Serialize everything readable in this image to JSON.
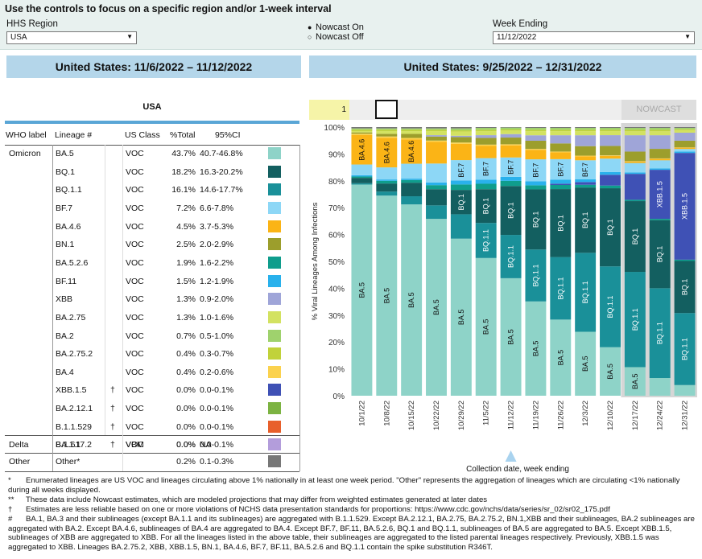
{
  "controls": {
    "instruction": "Use the controls to focus on a specific region and/or 1-week interval",
    "region_label": "HHS Region",
    "region_value": "USA",
    "nowcast_on": "Nowcast On",
    "nowcast_off": "Nowcast Off",
    "week_label": "Week Ending",
    "week_value": "11/12/2022"
  },
  "left_banner": "United States: 11/6/2022 – 11/12/2022",
  "right_banner": "United States: 9/25/2022 – 12/31/2022",
  "table": {
    "region": "USA",
    "headers": [
      "WHO label",
      "Lineage #",
      "US Class",
      "%Total",
      "95%CI"
    ],
    "rows": [
      {
        "who": "Omicron",
        "lineage": "BA.5",
        "dagger": "",
        "cls": "VOC",
        "pct": "43.7%",
        "ci": "40.7-46.8%",
        "color": "#8ed3c8"
      },
      {
        "who": "",
        "lineage": "BQ.1",
        "dagger": "",
        "cls": "VOC",
        "pct": "18.2%",
        "ci": "16.3-20.2%",
        "color": "#135f60"
      },
      {
        "who": "",
        "lineage": "BQ.1.1",
        "dagger": "",
        "cls": "VOC",
        "pct": "16.1%",
        "ci": "14.6-17.7%",
        "color": "#1a9099"
      },
      {
        "who": "",
        "lineage": "BF.7",
        "dagger": "",
        "cls": "VOC",
        "pct": "7.2%",
        "ci": "6.6-7.8%",
        "color": "#8dd7f6"
      },
      {
        "who": "",
        "lineage": "BA.4.6",
        "dagger": "",
        "cls": "VOC",
        "pct": "4.5%",
        "ci": "3.7-5.3%",
        "color": "#fbb416"
      },
      {
        "who": "",
        "lineage": "BN.1",
        "dagger": "",
        "cls": "VOC",
        "pct": "2.5%",
        "ci": "2.0-2.9%",
        "color": "#9c9e2c"
      },
      {
        "who": "",
        "lineage": "BA.5.2.6",
        "dagger": "",
        "cls": "VOC",
        "pct": "1.9%",
        "ci": "1.6-2.2%",
        "color": "#0f9d8c"
      },
      {
        "who": "",
        "lineage": "BF.11",
        "dagger": "",
        "cls": "VOC",
        "pct": "1.5%",
        "ci": "1.2-1.9%",
        "color": "#29b1ec"
      },
      {
        "who": "",
        "lineage": "XBB",
        "dagger": "",
        "cls": "VOC",
        "pct": "1.3%",
        "ci": "0.9-2.0%",
        "color": "#9fa5d8"
      },
      {
        "who": "",
        "lineage": "BA.2.75",
        "dagger": "",
        "cls": "VOC",
        "pct": "1.3%",
        "ci": "1.0-1.6%",
        "color": "#d3e261"
      },
      {
        "who": "",
        "lineage": "BA.2",
        "dagger": "",
        "cls": "VOC",
        "pct": "0.7%",
        "ci": "0.5-1.0%",
        "color": "#9fd26d"
      },
      {
        "who": "",
        "lineage": "BA.2.75.2",
        "dagger": "",
        "cls": "VOC",
        "pct": "0.4%",
        "ci": "0.3-0.7%",
        "color": "#c1d23a"
      },
      {
        "who": "",
        "lineage": "BA.4",
        "dagger": "",
        "cls": "VOC",
        "pct": "0.4%",
        "ci": "0.2-0.6%",
        "color": "#fbd24e"
      },
      {
        "who": "",
        "lineage": "XBB.1.5",
        "dagger": "†",
        "cls": "VOC",
        "pct": "0.0%",
        "ci": "0.0-0.1%",
        "color": "#3f51b5"
      },
      {
        "who": "",
        "lineage": "BA.2.12.1",
        "dagger": "†",
        "cls": "VOC",
        "pct": "0.0%",
        "ci": "0.0-0.1%",
        "color": "#7cb342"
      },
      {
        "who": "",
        "lineage": "B.1.1.529",
        "dagger": "†",
        "cls": "VOC",
        "pct": "0.0%",
        "ci": "0.0-0.1%",
        "color": "#e8602c"
      },
      {
        "who": "",
        "lineage": "BA.1.1",
        "dagger": "†",
        "cls": "VOC",
        "pct": "0.0%",
        "ci": "0.0-0.1%",
        "color": "#fb8a5a"
      },
      {
        "who": "Delta",
        "lineage": "B.1.617.2",
        "dagger": "",
        "cls": "VBM",
        "pct": "0.0%",
        "ci": "NA",
        "color": "#b39ddb"
      },
      {
        "who": "Other",
        "lineage": "Other*",
        "dagger": "",
        "cls": "",
        "pct": "0.2%",
        "ci": "0.1-0.3%",
        "color": "#777777"
      }
    ]
  },
  "slider": {
    "value": "1",
    "nowcast_label": "NOWCAST"
  },
  "chart_data": {
    "type": "bar",
    "stacked": true,
    "ylabel": "% Viral Lineages Among Infections",
    "xlabel": "Collection date, week ending",
    "ylim": [
      0,
      100
    ],
    "yticks": [
      "0%",
      "10%",
      "20%",
      "30%",
      "40%",
      "50%",
      "60%",
      "70%",
      "80%",
      "90%",
      "100%"
    ],
    "categories": [
      "10/1/22",
      "10/8/22",
      "10/15/22",
      "10/22/22",
      "10/29/22",
      "11/5/22",
      "11/12/22",
      "11/19/22",
      "11/26/22",
      "12/3/22",
      "12/10/22",
      "12/17/22",
      "12/24/22",
      "12/31/22"
    ],
    "selected_category": "11/12/22",
    "nowcast_start": "12/17/22",
    "series": [
      {
        "name": "BA.5",
        "color": "#8ed3c8",
        "values": [
          79,
          74.5,
          70.5,
          65.5,
          58,
          51,
          43.7,
          34.5,
          28,
          23.5,
          18,
          10.5,
          6.5,
          4
        ]
      },
      {
        "name": "BQ.1.1",
        "color": "#1a9099",
        "values": [
          0.5,
          1.5,
          3,
          5,
          9,
          13,
          16.1,
          19,
          23,
          29,
          30,
          35,
          33,
          27
        ]
      },
      {
        "name": "BQ.1",
        "color": "#135f60",
        "values": [
          2,
          3,
          5,
          6,
          9,
          12.5,
          18.2,
          22,
          25,
          24,
          29,
          26,
          25,
          19.5
        ]
      },
      {
        "name": "BA.5.2.6",
        "color": "#0f9d8c",
        "values": [
          0.5,
          1,
          1,
          1.5,
          2,
          2,
          1.9,
          1.5,
          1.5,
          1,
          1,
          0.5,
          0.5,
          0.5
        ]
      },
      {
        "name": "XBB.1.5",
        "color": "#3f51b5",
        "values": [
          0,
          0,
          0,
          0,
          0,
          0,
          0,
          0,
          0.5,
          1,
          4,
          9.5,
          18,
          40
        ]
      },
      {
        "name": "BF.11",
        "color": "#29b1ec",
        "values": [
          0.5,
          0.5,
          0.5,
          1,
          1.5,
          1.5,
          1.5,
          1.5,
          1.5,
          1,
          1,
          0.5,
          0.5,
          0.5
        ]
      },
      {
        "name": "BF.7",
        "color": "#8dd7f6",
        "values": [
          4,
          4.5,
          5.5,
          7,
          7.5,
          8,
          7.2,
          8,
          7.5,
          7,
          5,
          3.5,
          3,
          1
        ]
      },
      {
        "name": "BA.4.6",
        "color": "#fbb416",
        "values": [
          11,
          11,
          9,
          8,
          6,
          4.5,
          4.5,
          3.5,
          2.5,
          1.5,
          1,
          0.5,
          0.5,
          0.5
        ]
      },
      {
        "name": "BA.4",
        "color": "#fbd24e",
        "values": [
          0.5,
          0.5,
          0.5,
          0.5,
          0.5,
          0.5,
          0.4,
          0.3,
          0.3,
          0.2,
          0.2,
          0.2,
          0.2,
          0.1
        ]
      },
      {
        "name": "BN.1",
        "color": "#9c9e2c",
        "values": [
          0.5,
          1,
          1.5,
          1.5,
          2,
          2.5,
          2.5,
          3,
          3,
          3.5,
          3.5,
          3.5,
          3.5,
          2.5
        ]
      },
      {
        "name": "XBB",
        "color": "#9fa5d8",
        "values": [
          0,
          0,
          0,
          0.5,
          0.5,
          1,
          1.3,
          2,
          3,
          4,
          4,
          6,
          5,
          3
        ]
      },
      {
        "name": "BA.2.75",
        "color": "#d3e261",
        "values": [
          0.5,
          1,
          1,
          1.5,
          1.5,
          1.5,
          1.3,
          1.5,
          1.5,
          1.5,
          1.5,
          1.5,
          1.5,
          1
        ]
      },
      {
        "name": "BA.2.75.2",
        "color": "#c1d23a",
        "values": [
          0.5,
          0.5,
          0.5,
          0.5,
          0.5,
          0.5,
          0.4,
          0.5,
          0.5,
          0.5,
          0.5,
          0.5,
          0.5,
          0.3
        ]
      },
      {
        "name": "BA.2",
        "color": "#9fd26d",
        "values": [
          0.5,
          0.5,
          0.5,
          0.5,
          0.7,
          0.7,
          0.7,
          0.7,
          0.7,
          0.7,
          0.7,
          0.7,
          0.7,
          0.5
        ]
      },
      {
        "name": "Other*",
        "color": "#777777",
        "values": [
          0.5,
          0.5,
          0.5,
          0.5,
          0.5,
          0.3,
          0.2,
          0.3,
          0.3,
          0.3,
          0.3,
          0.3,
          0.3,
          0.3
        ]
      }
    ],
    "bar_labels": [
      {
        "category": "10/1/22",
        "series": "BA.5",
        "text": "BA.5"
      },
      {
        "category": "10/1/22",
        "series": "BA.4.6",
        "text": "BA.4.6"
      },
      {
        "category": "10/8/22",
        "series": "BA.5",
        "text": "BA.5"
      },
      {
        "category": "10/8/22",
        "series": "BA.4.6",
        "text": "BA.4.6"
      },
      {
        "category": "10/15/22",
        "series": "BA.5",
        "text": "BA.5"
      },
      {
        "category": "10/15/22",
        "series": "BA.4.6",
        "text": "BA.4.6"
      },
      {
        "category": "10/22/22",
        "series": "BA.5",
        "text": "BA.5"
      },
      {
        "category": "10/29/22",
        "series": "BA.5",
        "text": "BA.5"
      },
      {
        "category": "10/29/22",
        "series": "BQ.1",
        "text": "BQ.1"
      },
      {
        "category": "10/29/22",
        "series": "BF.7",
        "text": "BF.7"
      },
      {
        "category": "11/5/22",
        "series": "BA.5",
        "text": "BA.5"
      },
      {
        "category": "11/5/22",
        "series": "BQ.1.1",
        "text": "BQ.1.1"
      },
      {
        "category": "11/5/22",
        "series": "BQ.1",
        "text": "BQ.1"
      },
      {
        "category": "11/5/22",
        "series": "BF.7",
        "text": "BF.7"
      },
      {
        "category": "11/12/22",
        "series": "BA.5",
        "text": "BA.5"
      },
      {
        "category": "11/12/22",
        "series": "BQ.1.1",
        "text": "BQ.1.1"
      },
      {
        "category": "11/12/22",
        "series": "BQ.1",
        "text": "BQ.1"
      },
      {
        "category": "11/12/22",
        "series": "BF.7",
        "text": "BF.7"
      },
      {
        "category": "11/19/22",
        "series": "BA.5",
        "text": "BA.5"
      },
      {
        "category": "11/19/22",
        "series": "BQ.1.1",
        "text": "BQ.1.1"
      },
      {
        "category": "11/19/22",
        "series": "BQ.1",
        "text": "BQ.1"
      },
      {
        "category": "11/19/22",
        "series": "BF.7",
        "text": "BF.7"
      },
      {
        "category": "11/26/22",
        "series": "BA.5",
        "text": "BA.5"
      },
      {
        "category": "11/26/22",
        "series": "BQ.1.1",
        "text": "BQ.1.1"
      },
      {
        "category": "11/26/22",
        "series": "BQ.1",
        "text": "BQ.1"
      },
      {
        "category": "11/26/22",
        "series": "BF.7",
        "text": "BF.7"
      },
      {
        "category": "12/3/22",
        "series": "BA.5",
        "text": "BA.5"
      },
      {
        "category": "12/3/22",
        "series": "BQ.1.1",
        "text": "BQ.1.1"
      },
      {
        "category": "12/3/22",
        "series": "BQ.1",
        "text": "BQ.1"
      },
      {
        "category": "12/3/22",
        "series": "BF.7",
        "text": "BF.7"
      },
      {
        "category": "12/10/22",
        "series": "BA.5",
        "text": "BA.5"
      },
      {
        "category": "12/10/22",
        "series": "BQ.1.1",
        "text": "BQ.1.1"
      },
      {
        "category": "12/10/22",
        "series": "BQ.1",
        "text": "BQ.1"
      },
      {
        "category": "12/17/22",
        "series": "BA.5",
        "text": "BA.5"
      },
      {
        "category": "12/17/22",
        "series": "BQ.1.1",
        "text": "BQ.1.1"
      },
      {
        "category": "12/17/22",
        "series": "BQ.1",
        "text": "BQ.1"
      },
      {
        "category": "12/24/22",
        "series": "BQ.1.1",
        "text": "BQ.1.1"
      },
      {
        "category": "12/24/22",
        "series": "BQ.1",
        "text": "BQ.1"
      },
      {
        "category": "12/24/22",
        "series": "XBB.1.5",
        "text": "XBB.1.5"
      },
      {
        "category": "12/31/22",
        "series": "BQ.1.1",
        "text": "BQ.1.1"
      },
      {
        "category": "12/31/22",
        "series": "BQ.1",
        "text": "BQ.1"
      },
      {
        "category": "12/31/22",
        "series": "XBB.1.5",
        "text": "XBB.1.5"
      }
    ]
  },
  "footnotes": [
    {
      "sym": "*",
      "text": "Enumerated lineages are US VOC and lineages circulating above 1% nationally in at least one week period. \"Other\" represents the aggregation of lineages which are circulating <1% nationally during all weeks displayed."
    },
    {
      "sym": "**",
      "text": "These data include Nowcast estimates, which are modeled projections that may differ from weighted estimates generated at later dates"
    },
    {
      "sym": "†",
      "text": "Estimates are less reliable based on one or more violations of NCHS data presentation standards for proportions: https://www.cdc.gov/nchs/data/series/sr_02/sr02_175.pdf"
    },
    {
      "sym": "#",
      "text": "BA.1, BA.3 and their sublineages (except BA.1.1 and its sublineages) are aggregated with B.1.1.529. Except BA.2.12.1, BA.2.75, BA.2.75.2, BN.1,XBB and their sublineages, BA.2 sublineages are aggregated with BA.2. Except BA.4.6, sublineages of BA.4 are aggregated to BA.4. Except BF.7, BF.11, BA.5.2.6, BQ.1 and BQ.1.1, sublineages of BA.5 are aggregated to BA.5. Except XBB.1.5, sublineages of XBB are aggregated to XBB. For all the lineages listed in the above table, their sublineages are aggregated to the listed parental lineages respectively. Previously, XBB.1.5 was aggregated to XBB. Lineages BA.2.75.2, XBB, XBB.1.5, BN.1, BA.4.6, BF.7, BF.11, BA.5.2.6 and BQ.1.1 contain the spike substitution R346T."
    }
  ]
}
